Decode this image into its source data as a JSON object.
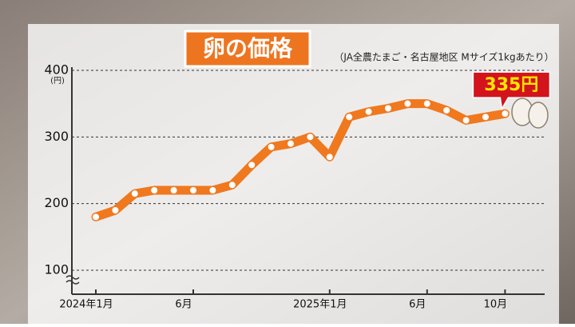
{
  "chart_data": {
    "type": "line",
    "title": "卵の価格",
    "subtitle": "（JA全農たまご・名古屋地区 Mサイズ1kgあたり）",
    "y_unit": "(円)",
    "categories": [
      "2024年1月",
      null,
      null,
      null,
      null,
      "6月",
      null,
      null,
      null,
      null,
      null,
      null,
      "2025年1月",
      null,
      null,
      null,
      null,
      "6月",
      null,
      null,
      null,
      "10月"
    ],
    "series": [
      {
        "color": "#f0781e",
        "values": [
          180,
          190,
          215,
          220,
          220,
          220,
          220,
          228,
          258,
          285,
          290,
          300,
          270,
          330,
          338,
          343,
          350,
          350,
          340,
          325,
          330,
          335
        ],
        "value_labels": [
          null,
          null,
          null,
          null,
          null,
          null,
          null,
          null,
          null,
          null,
          null,
          null,
          null,
          null,
          null,
          null,
          null,
          null,
          null,
          null,
          null,
          "335円"
        ]
      }
    ],
    "ylim": [
      100,
      400
    ],
    "yticks": [
      100,
      200,
      300,
      400
    ],
    "grid": true
  }
}
